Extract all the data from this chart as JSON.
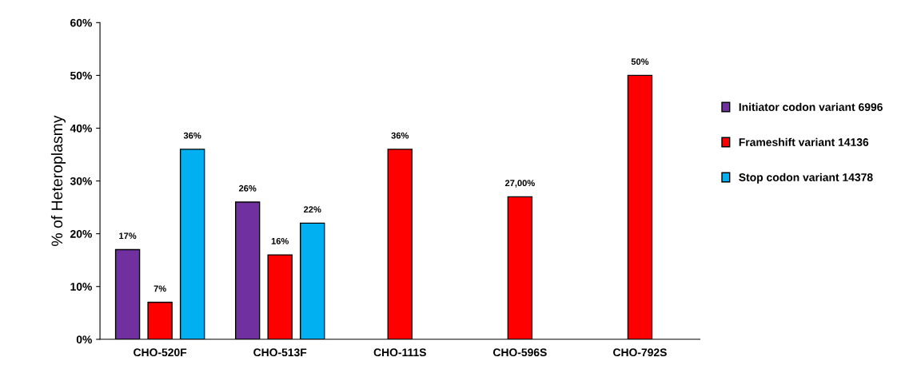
{
  "chart_data": {
    "type": "bar",
    "ylabel": "% of Heteroplasmy",
    "categories": [
      "CHO-520F",
      "CHO-513F",
      "CHO-111S",
      "CHO-596S",
      "CHO-792S"
    ],
    "series": [
      {
        "name": "Initiator codon variant 6996",
        "color": "#7030a0",
        "values": [
          17,
          26,
          null,
          null,
          null
        ],
        "value_labels": [
          "17%",
          "26%",
          null,
          null,
          null
        ]
      },
      {
        "name": "Frameshift variant 14136",
        "color": "#ff0000",
        "values": [
          7,
          16,
          36,
          27,
          50
        ],
        "value_labels": [
          "7%",
          "16%",
          "36%",
          "27,00%",
          "50%"
        ]
      },
      {
        "name": "Stop codon variant 14378",
        "color": "#00b0f0",
        "values": [
          36,
          22,
          null,
          null,
          null
        ],
        "value_labels": [
          "36%",
          "22%",
          null,
          null,
          null
        ]
      }
    ],
    "ylim": [
      0,
      60
    ],
    "yticks": [
      {
        "value": 0,
        "label": "0%"
      },
      {
        "value": 10,
        "label": "10%"
      },
      {
        "value": 20,
        "label": "20%"
      },
      {
        "value": 30,
        "label": "30%"
      },
      {
        "value": 40,
        "label": "40%"
      },
      {
        "value": 50,
        "label": "50%"
      },
      {
        "value": 60,
        "label": "60%"
      }
    ],
    "grid": false,
    "legend": "right"
  }
}
